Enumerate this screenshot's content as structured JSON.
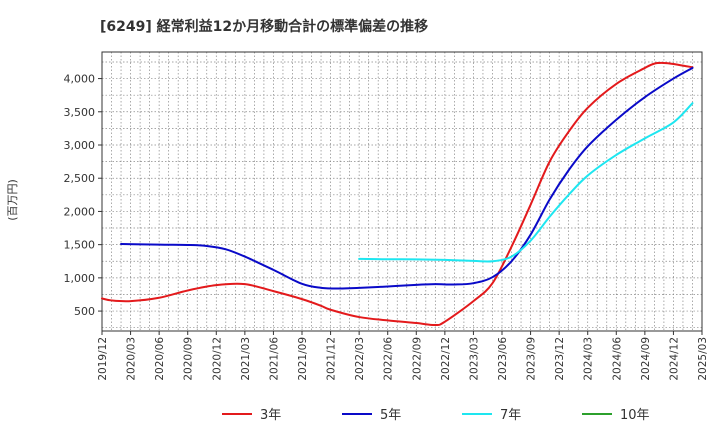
{
  "chart_data": {
    "type": "line",
    "title": "[6249]  経常利益12か月移動合計の標準偏差の推移",
    "ylabel": "(百万円)",
    "xlabel": "",
    "ylim": [
      200,
      4400
    ],
    "yticks": [
      500,
      1000,
      1500,
      2000,
      2500,
      3000,
      3500,
      4000
    ],
    "ytick_labels": [
      "500",
      "1,000",
      "1,500",
      "2,000",
      "2,500",
      "3,000",
      "3,500",
      "4,000"
    ],
    "xlim": [
      "2019-12",
      "2025-03"
    ],
    "xtick_labels": [
      "2019/12",
      "2020/03",
      "2020/06",
      "2020/09",
      "2020/12",
      "2021/03",
      "2021/06",
      "2021/09",
      "2021/12",
      "2022/03",
      "2022/06",
      "2022/09",
      "2022/12",
      "2023/03",
      "2023/06",
      "2023/09",
      "2023/12",
      "2024/03",
      "2024/06",
      "2024/09",
      "2024/12",
      "2025/03"
    ],
    "grid": true,
    "legend_position": "bottom",
    "series": [
      {
        "name": "3年",
        "color": "#e31a1c",
        "points": [
          [
            "2019-12",
            690
          ],
          [
            "2020-01",
            660
          ],
          [
            "2020-03",
            650
          ],
          [
            "2020-06",
            700
          ],
          [
            "2020-09",
            810
          ],
          [
            "2020-12",
            890
          ],
          [
            "2021-03",
            905
          ],
          [
            "2021-06",
            800
          ],
          [
            "2021-09",
            680
          ],
          [
            "2021-11",
            580
          ],
          [
            "2021-12",
            520
          ],
          [
            "2022-03",
            410
          ],
          [
            "2022-06",
            360
          ],
          [
            "2022-09",
            320
          ],
          [
            "2022-11",
            290
          ],
          [
            "2022-12",
            340
          ],
          [
            "2023-03",
            650
          ],
          [
            "2023-05",
            920
          ],
          [
            "2023-07",
            1470
          ],
          [
            "2023-09",
            2100
          ],
          [
            "2023-11",
            2750
          ],
          [
            "2024-01",
            3200
          ],
          [
            "2024-03",
            3560
          ],
          [
            "2024-06",
            3920
          ],
          [
            "2024-09",
            4160
          ],
          [
            "2024-10",
            4225
          ],
          [
            "2024-11",
            4235
          ],
          [
            "2024-12",
            4220
          ],
          [
            "2025-02",
            4170
          ]
        ]
      },
      {
        "name": "5年",
        "color": "#0a0ac8",
        "points": [
          [
            "2020-02",
            1510
          ],
          [
            "2020-06",
            1500
          ],
          [
            "2020-09",
            1495
          ],
          [
            "2020-11",
            1480
          ],
          [
            "2021-01",
            1430
          ],
          [
            "2021-03",
            1320
          ],
          [
            "2021-06",
            1120
          ],
          [
            "2021-09",
            910
          ],
          [
            "2021-11",
            850
          ],
          [
            "2022-01",
            840
          ],
          [
            "2022-03",
            850
          ],
          [
            "2022-06",
            870
          ],
          [
            "2022-09",
            895
          ],
          [
            "2022-11",
            905
          ],
          [
            "2023-01",
            900
          ],
          [
            "2023-03",
            920
          ],
          [
            "2023-05",
            1010
          ],
          [
            "2023-07",
            1250
          ],
          [
            "2023-09",
            1650
          ],
          [
            "2023-11",
            2180
          ],
          [
            "2024-01",
            2620
          ],
          [
            "2024-03",
            2980
          ],
          [
            "2024-06",
            3380
          ],
          [
            "2024-09",
            3720
          ],
          [
            "2024-12",
            4000
          ],
          [
            "2025-02",
            4160
          ]
        ]
      },
      {
        "name": "7年",
        "color": "#1ee6f0",
        "points": [
          [
            "2022-03",
            1285
          ],
          [
            "2022-06",
            1280
          ],
          [
            "2022-09",
            1278
          ],
          [
            "2022-12",
            1270
          ],
          [
            "2023-03",
            1255
          ],
          [
            "2023-05",
            1250
          ],
          [
            "2023-07",
            1320
          ],
          [
            "2023-09",
            1560
          ],
          [
            "2023-11",
            1920
          ],
          [
            "2024-01",
            2250
          ],
          [
            "2024-03",
            2540
          ],
          [
            "2024-06",
            2850
          ],
          [
            "2024-09",
            3100
          ],
          [
            "2024-12",
            3340
          ],
          [
            "2025-02",
            3630
          ]
        ]
      },
      {
        "name": "10年",
        "color": "#2ca02c",
        "points": []
      }
    ]
  }
}
